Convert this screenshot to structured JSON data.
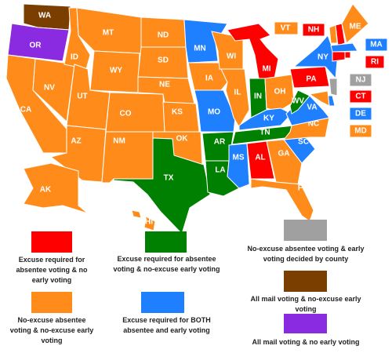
{
  "states": [
    {
      "label": "WA",
      "category": 5
    },
    {
      "label": "OR",
      "category": 6
    },
    {
      "label": "CA",
      "category": 3
    },
    {
      "label": "NV",
      "category": 3
    },
    {
      "label": "ID",
      "category": 3
    },
    {
      "label": "MT",
      "category": 3
    },
    {
      "label": "WY",
      "category": 3
    },
    {
      "label": "UT",
      "category": 3
    },
    {
      "label": "AZ",
      "category": 3
    },
    {
      "label": "CO",
      "category": 3
    },
    {
      "label": "NM",
      "category": 3
    },
    {
      "label": "ND",
      "category": 3
    },
    {
      "label": "SD",
      "category": 3
    },
    {
      "label": "NE",
      "category": 3
    },
    {
      "label": "KS",
      "category": 3
    },
    {
      "label": "OK",
      "category": 3
    },
    {
      "label": "TX",
      "category": 1
    },
    {
      "label": "MN",
      "category": 4
    },
    {
      "label": "IA",
      "category": 3
    },
    {
      "label": "MO",
      "category": 4
    },
    {
      "label": "AR",
      "category": 1
    },
    {
      "label": "LA",
      "category": 1
    },
    {
      "label": "WI",
      "category": 3
    },
    {
      "label": "IL",
      "category": 3
    },
    {
      "label": "MI",
      "category": 0
    },
    {
      "label": "IN",
      "category": 1
    },
    {
      "label": "OH",
      "category": 3
    },
    {
      "label": "KY",
      "category": 4
    },
    {
      "label": "TN",
      "category": 1
    },
    {
      "label": "MS",
      "category": 4
    },
    {
      "label": "AL",
      "category": 0
    },
    {
      "label": "GA",
      "category": 3
    },
    {
      "label": "FL",
      "category": 3
    },
    {
      "label": "SC",
      "category": 4
    },
    {
      "label": "NC",
      "category": 3
    },
    {
      "label": "VA",
      "category": 4
    },
    {
      "label": "WV",
      "category": 1
    },
    {
      "label": "PA",
      "category": 0
    },
    {
      "label": "NY",
      "category": 4
    },
    {
      "label": "VT",
      "category": 3
    },
    {
      "label": "NH",
      "category": 0
    },
    {
      "label": "ME",
      "category": 3
    },
    {
      "label": "MA",
      "category": 4
    },
    {
      "label": "RI",
      "category": 0
    },
    {
      "label": "CT",
      "category": 0
    },
    {
      "label": "NJ",
      "category": 2
    },
    {
      "label": "DE",
      "category": 4
    },
    {
      "label": "MD",
      "category": 3
    },
    {
      "label": "AK",
      "category": 3
    },
    {
      "label": "HI",
      "category": 3
    }
  ],
  "legend": [
    {
      "label": "Excuse required for absentee voting & no early voting",
      "color": "#ff0000"
    },
    {
      "label": "Excuse required for absentee voting & no-excuse early voting",
      "color": "#008000"
    },
    {
      "label": "No-excuse absentee voting & early voting decided by county",
      "color": "#a0a0a0"
    },
    {
      "label": "No-excuse absentee voting & no-excuse early voting",
      "color": "#ff8c1a"
    },
    {
      "label": "Excuse required for BOTH absentee and early voting",
      "color": "#1e7fff"
    },
    {
      "label": "All mail voting & no-excuse early voting",
      "color": "#7a3f00"
    },
    {
      "label": "All mail voting & no early voting",
      "color": "#8a2be2"
    }
  ]
}
